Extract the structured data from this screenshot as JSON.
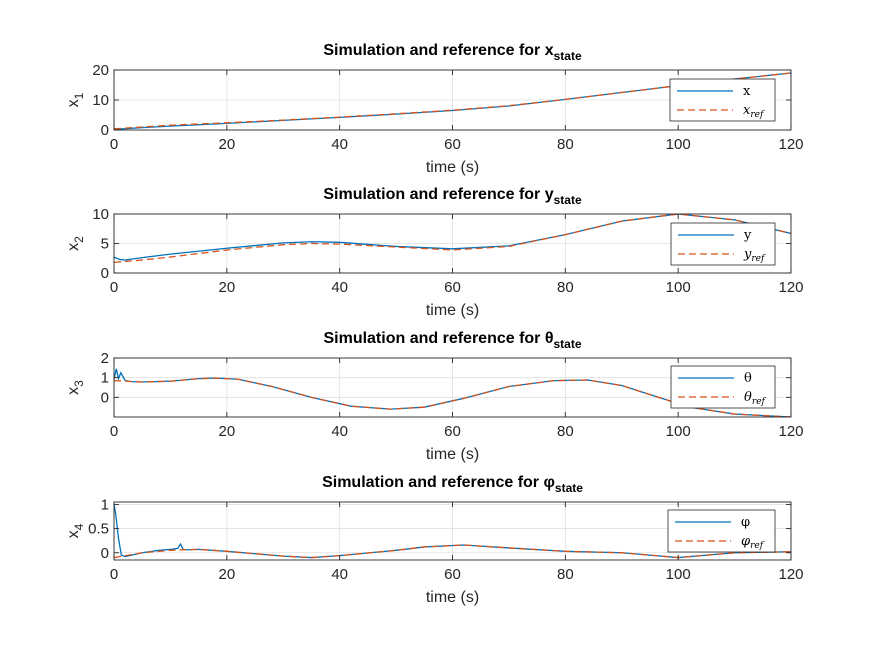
{
  "colors": {
    "sim": "#0072BD",
    "ref": "#D95319",
    "grid": "#DFDFDF",
    "axis": "#262626"
  },
  "chart_data": [
    {
      "type": "line",
      "title": "Simulation and reference for x",
      "title_sub": "state",
      "xlabel": "time (s)",
      "ylabel": "x",
      "ylabel_sub": "1",
      "xlim": [
        0,
        120
      ],
      "ylim": [
        0,
        20
      ],
      "xticks": [
        0,
        20,
        40,
        60,
        80,
        100,
        120
      ],
      "yticks": [
        0,
        10,
        20
      ],
      "grid": true,
      "legend_position": "top-right",
      "series": [
        {
          "name": "x",
          "style": "solid",
          "x": [
            0,
            5,
            10,
            20,
            30,
            40,
            50,
            60,
            70,
            80,
            90,
            100,
            110,
            120
          ],
          "y": [
            0.2,
            0.8,
            1.3,
            2.2,
            3.2,
            4.2,
            5.3,
            6.5,
            8.0,
            10.2,
            12.5,
            14.8,
            17.0,
            19.0
          ]
        },
        {
          "name": "x",
          "name_sub": "ref",
          "style": "dashed",
          "x": [
            0,
            5,
            10,
            20,
            30,
            40,
            50,
            60,
            70,
            80,
            90,
            100,
            110,
            120
          ],
          "y": [
            0.4,
            1.0,
            1.6,
            2.4,
            3.3,
            4.3,
            5.4,
            6.6,
            8.1,
            10.2,
            12.5,
            14.8,
            17.0,
            19.0
          ]
        }
      ]
    },
    {
      "type": "line",
      "title": "Simulation and reference for y",
      "title_sub": "state",
      "xlabel": "time (s)",
      "ylabel": "x",
      "ylabel_sub": "2",
      "xlim": [
        0,
        120
      ],
      "ylim": [
        0,
        10
      ],
      "xticks": [
        0,
        20,
        40,
        60,
        80,
        100,
        120
      ],
      "yticks": [
        0,
        5,
        10
      ],
      "grid": true,
      "legend_position": "top-right",
      "series": [
        {
          "name": "y",
          "style": "solid",
          "x": [
            0,
            1,
            2,
            5,
            10,
            20,
            30,
            35,
            40,
            50,
            60,
            70,
            80,
            90,
            100,
            110,
            120
          ],
          "y": [
            2.7,
            2.3,
            2.2,
            2.6,
            3.2,
            4.2,
            5.1,
            5.3,
            5.2,
            4.5,
            4.1,
            4.6,
            6.5,
            8.8,
            10.0,
            9.0,
            6.7
          ]
        },
        {
          "name": "y",
          "name_sub": "ref",
          "style": "dashed",
          "x": [
            0,
            5,
            10,
            20,
            30,
            35,
            40,
            50,
            60,
            70,
            80,
            90,
            100,
            110,
            120
          ],
          "y": [
            1.8,
            2.2,
            2.7,
            3.9,
            4.8,
            5.0,
            4.9,
            4.4,
            3.9,
            4.5,
            6.5,
            8.8,
            10.0,
            9.0,
            6.7
          ]
        }
      ]
    },
    {
      "type": "line",
      "title": "Simulation and reference for θ",
      "title_sub": "state",
      "xlabel": "time (s)",
      "ylabel": "x",
      "ylabel_sub": "3",
      "xlim": [
        0,
        120
      ],
      "ylim": [
        -1,
        2
      ],
      "xticks": [
        0,
        20,
        40,
        60,
        80,
        100,
        120
      ],
      "yticks": [
        0,
        1,
        2
      ],
      "grid": true,
      "legend_position": "top-right",
      "series": [
        {
          "name": "θ",
          "style": "solid",
          "x": [
            0,
            0.4,
            0.8,
            1.2,
            2,
            3,
            5,
            10,
            15,
            18,
            22,
            28,
            35,
            42,
            49,
            55,
            62,
            70,
            78,
            84,
            90,
            96,
            102,
            110,
            120
          ],
          "y": [
            0.9,
            1.45,
            0.95,
            1.25,
            0.85,
            0.8,
            0.78,
            0.82,
            0.95,
            0.98,
            0.92,
            0.55,
            0.0,
            -0.45,
            -0.6,
            -0.5,
            -0.05,
            0.55,
            0.85,
            0.88,
            0.6,
            0.05,
            -0.5,
            -0.85,
            -1.0
          ]
        },
        {
          "name": "θ",
          "name_sub": "ref",
          "style": "dashed",
          "x": [
            0,
            5,
            10,
            15,
            18,
            22,
            28,
            35,
            42,
            49,
            55,
            62,
            70,
            78,
            84,
            90,
            96,
            102,
            110,
            120
          ],
          "y": [
            0.85,
            0.78,
            0.82,
            0.95,
            0.98,
            0.92,
            0.55,
            0.0,
            -0.45,
            -0.6,
            -0.5,
            -0.05,
            0.55,
            0.85,
            0.88,
            0.6,
            0.05,
            -0.5,
            -0.85,
            -1.0
          ]
        }
      ]
    },
    {
      "type": "line",
      "title": "Simulation and reference for φ",
      "title_sub": "state",
      "xlabel": "time (s)",
      "ylabel": "x",
      "ylabel_sub": "4",
      "xlim": [
        0,
        120
      ],
      "ylim": [
        -0.15,
        1.05
      ],
      "xticks": [
        0,
        20,
        40,
        60,
        80,
        100,
        120
      ],
      "yticks": [
        0,
        0.5,
        1
      ],
      "grid": true,
      "legend_position": "top-right",
      "series": [
        {
          "name": "φ",
          "style": "solid",
          "x": [
            0,
            0.3,
            0.8,
            1.3,
            2,
            5,
            8,
            10,
            11.3,
            11.8,
            12.3,
            15,
            20,
            25,
            30,
            35,
            40,
            50,
            55,
            62,
            70,
            80,
            90,
            100,
            110,
            120
          ],
          "y": [
            1.0,
            0.8,
            0.3,
            -0.05,
            -0.08,
            0.0,
            0.05,
            0.07,
            0.09,
            0.18,
            0.06,
            0.07,
            0.03,
            -0.02,
            -0.07,
            -0.1,
            -0.06,
            0.05,
            0.12,
            0.16,
            0.1,
            0.03,
            0.0,
            -0.1,
            0.0,
            0.02
          ]
        },
        {
          "name": "φ",
          "name_sub": "ref",
          "style": "dashed",
          "x": [
            0,
            5,
            10,
            15,
            20,
            25,
            30,
            35,
            40,
            50,
            55,
            62,
            70,
            80,
            90,
            100,
            110,
            120
          ],
          "y": [
            -0.1,
            0.0,
            0.05,
            0.07,
            0.03,
            -0.02,
            -0.07,
            -0.1,
            -0.06,
            0.05,
            0.12,
            0.16,
            0.1,
            0.03,
            0.0,
            -0.1,
            0.0,
            0.02
          ]
        }
      ]
    }
  ]
}
